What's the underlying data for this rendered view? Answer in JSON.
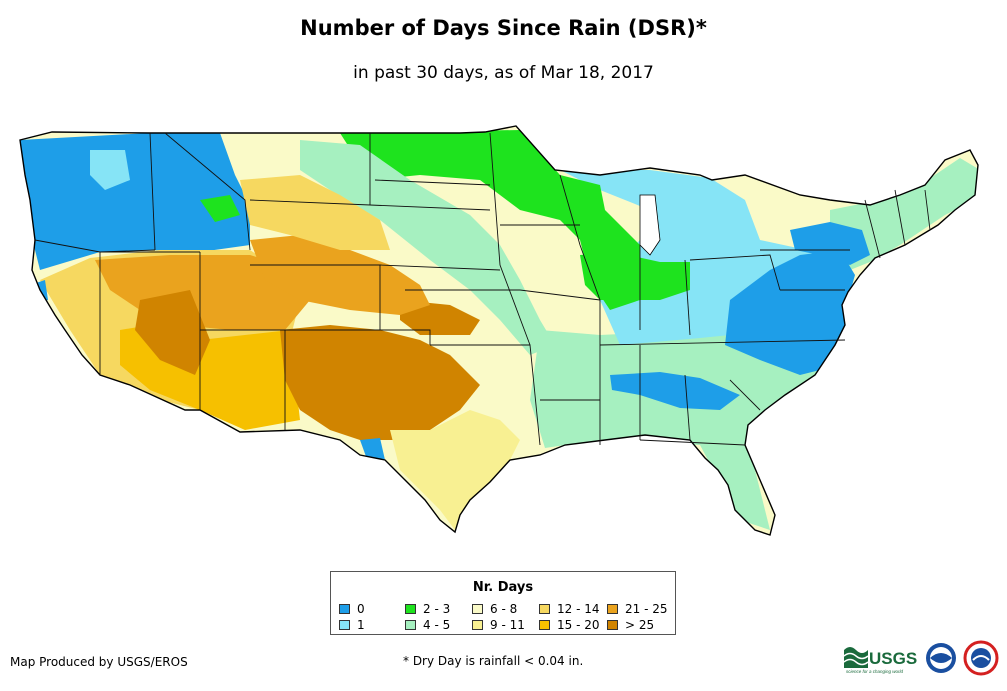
{
  "title": "Number of Days Since Rain (DSR)*",
  "subtitle": "in past 30 days, as of Mar 18, 2017",
  "legend": {
    "title": "Nr. Days",
    "items": [
      {
        "label": "0",
        "color": "#1e9ee8"
      },
      {
        "label": "1",
        "color": "#86e4f6"
      },
      {
        "label": "2 - 3",
        "color": "#1ee31e"
      },
      {
        "label": "4 - 5",
        "color": "#a6f0c0"
      },
      {
        "label": "6 - 8",
        "color": "#fafac8"
      },
      {
        "label": "9 - 11",
        "color": "#f8f092"
      },
      {
        "label": "12 - 14",
        "color": "#f6d860"
      },
      {
        "label": "15 - 20",
        "color": "#f6c000"
      },
      {
        "label": "21 - 25",
        "color": "#eaa31e"
      },
      {
        "label": "> 25",
        "color": "#d08400"
      }
    ]
  },
  "credit": "Map Produced by USGS/EROS",
  "footnote": "* Dry Day is rainfall < 0.04 in.",
  "logos": {
    "usgs_text": "USGS",
    "usgs_tagline": "science for a changing world",
    "usgs_color": "#1a6a3c",
    "noaa_color": "#1a4fa0",
    "nws_color": "#d42020"
  }
}
